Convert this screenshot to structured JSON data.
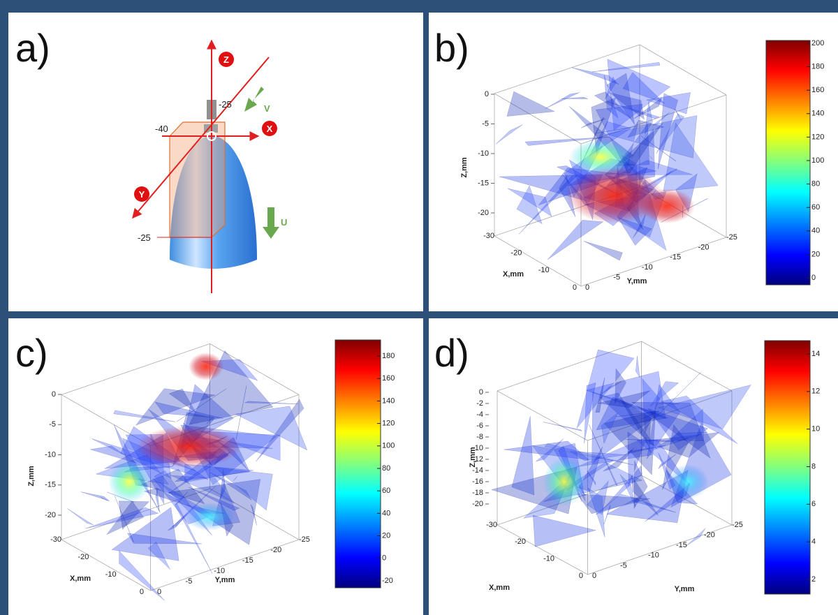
{
  "panels": [
    {
      "label": "a)",
      "axis_labels": [
        "Z",
        "X",
        "Y"
      ],
      "motion_labels": [
        "V",
        "U"
      ],
      "dimensions": [
        "-25",
        "-40",
        "-25"
      ]
    },
    {
      "label": "b)",
      "z_axis_title": "Z,mm",
      "x_axis_title": "X,mm",
      "y_axis_title": "Y,mm",
      "z_ticks": [
        0,
        -5,
        -10,
        -15,
        -20
      ],
      "x_ticks": [
        -30,
        -20,
        -10,
        0
      ],
      "y_ticks": [
        0,
        -5,
        -10,
        -15,
        -20,
        -25
      ],
      "colorbar_ticks": [
        200,
        180,
        160,
        140,
        120,
        100,
        80,
        60,
        40,
        20,
        0
      ]
    },
    {
      "label": "c)",
      "z_axis_title": "Z,mm",
      "x_axis_title": "X,mm",
      "y_axis_title": "Y,mm",
      "z_ticks": [
        0,
        -5,
        -10,
        -15,
        -20
      ],
      "x_ticks": [
        -30,
        -20,
        -10,
        0
      ],
      "y_ticks": [
        0,
        -5,
        -10,
        -15,
        -20,
        -25
      ],
      "colorbar_ticks": [
        180,
        160,
        140,
        120,
        100,
        80,
        60,
        40,
        20,
        0,
        -20
      ]
    },
    {
      "label": "d)",
      "z_axis_title": "Z,mm",
      "x_axis_title": "X,mm",
      "y_axis_title": "Y,mm",
      "z_ticks": [
        0,
        -2,
        -4,
        -6,
        -8,
        -10,
        -12,
        -14,
        -16,
        -18,
        -20
      ],
      "x_ticks": [
        -30,
        -20,
        -10,
        0
      ],
      "y_ticks": [
        0,
        -5,
        -10,
        -15,
        -20,
        -25
      ],
      "colorbar_ticks": [
        14,
        12,
        10,
        8,
        6,
        4,
        2
      ]
    }
  ]
}
